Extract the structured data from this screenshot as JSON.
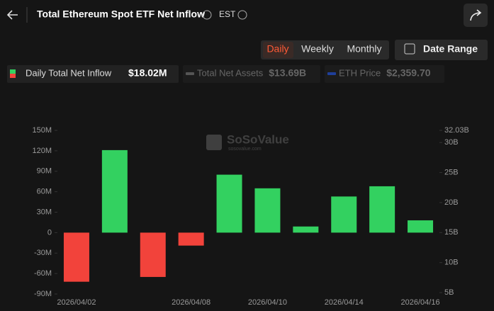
{
  "header": {
    "title": "Total Ethereum Spot ETF Net Inflow",
    "timezone": "EST"
  },
  "controls": {
    "periods": [
      "Daily",
      "Weekly",
      "Monthly"
    ],
    "date_range": "Date Range"
  },
  "watermark": {
    "brand": "SoSoValue",
    "url": "sosovalue.com"
  },
  "chart_data": {
    "type": "bar",
    "categories": [
      "2026/04/02",
      null,
      null,
      "2026/04/08",
      null,
      "2026/04/10",
      null,
      "2026/04/14",
      null,
      "2026/04/16"
    ],
    "series": [
      {
        "name": "Daily Total Net Inflow",
        "total_label": "$18.02M",
        "color": "#33d160",
        "negative_color": "#f2433b",
        "values": [
          -72,
          121,
          -65,
          -19,
          85,
          65,
          9,
          53,
          68,
          18.02
        ]
      }
    ],
    "inactive_series": [
      {
        "name": "Total Net Assets",
        "total_label": "$13.69B",
        "color": "#555555"
      },
      {
        "name": "ETH Price",
        "total_label": "$2,359.70",
        "color": "#1f3f9a"
      }
    ],
    "ylim": [
      -90,
      150
    ],
    "yticks": [
      {
        "value": -90,
        "label": "-90M"
      },
      {
        "value": -60,
        "label": "-60M"
      },
      {
        "value": -30,
        "label": "-30M"
      },
      0,
      {
        "value": 30,
        "label": "30M"
      },
      {
        "value": 60,
        "label": "60M"
      },
      {
        "value": 90,
        "label": "90M"
      },
      {
        "value": 120,
        "label": "120M"
      },
      {
        "value": 150,
        "label": "150M"
      }
    ],
    "y2lim": [
      4.77,
      32.03
    ],
    "y2ticks": [
      {
        "value": 5,
        "label": "5B"
      },
      {
        "value": 10,
        "label": "10B"
      },
      {
        "value": 15,
        "label": "15B"
      },
      {
        "value": 20,
        "label": "20B"
      },
      {
        "value": 25,
        "label": "25B"
      },
      {
        "value": 30,
        "label": "30B"
      },
      {
        "value": 32.03,
        "label": "32.03B"
      }
    ],
    "grid": false
  }
}
